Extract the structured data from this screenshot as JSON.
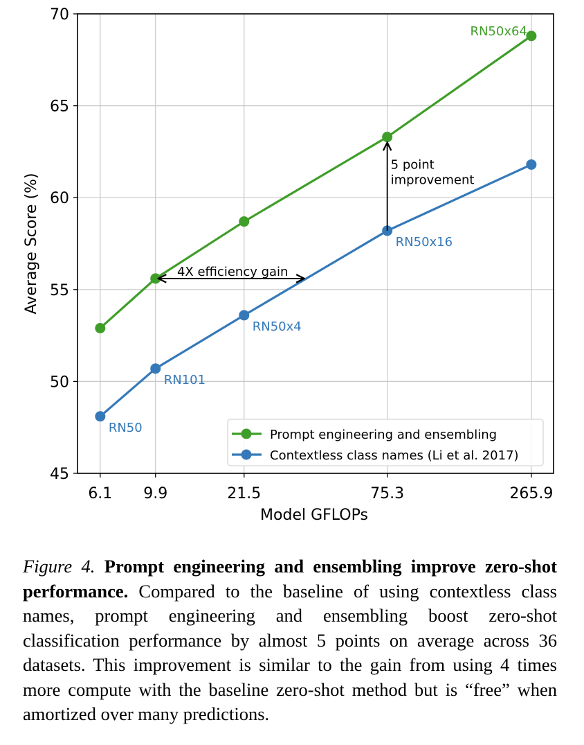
{
  "chart_data": {
    "type": "line",
    "xlabel": "Model GFLOPs",
    "ylabel": "Average Score (%)",
    "x_scale": "log",
    "x": [
      6.1,
      9.9,
      21.5,
      75.3,
      265.9
    ],
    "x_tick_labels": [
      "6.1",
      "9.9",
      "21.5",
      "75.3",
      "265.9"
    ],
    "xlim": [
      5.0,
      323
    ],
    "ylim": [
      45,
      70
    ],
    "y_ticks": [
      45,
      50,
      55,
      60,
      65,
      70
    ],
    "grid": true,
    "legend_placement": "lower-right",
    "series": [
      {
        "name": "Prompt engineering and ensembling",
        "color": "#3f9e29",
        "values": [
          52.9,
          55.6,
          58.7,
          63.3,
          68.8
        ]
      },
      {
        "name": "Contextless class names (Li et al. 2017)",
        "color": "#3579b9",
        "values": [
          48.1,
          50.7,
          53.6,
          58.2,
          61.8
        ]
      }
    ],
    "point_labels": [
      {
        "series": 1,
        "index": 0,
        "text": "RN50"
      },
      {
        "series": 1,
        "index": 1,
        "text": "RN101"
      },
      {
        "series": 1,
        "index": 2,
        "text": "RN50x4"
      },
      {
        "series": 1,
        "index": 3,
        "text": "RN50x16"
      },
      {
        "series": 0,
        "index": 4,
        "text": "RN50x64"
      }
    ],
    "annotations": [
      {
        "text": "4X efficiency gain",
        "type": "double-arrow-horizontal",
        "x_from": 9.9,
        "x_to": 36.4,
        "y": 55.6
      },
      {
        "text_lines": [
          "5 point",
          "improvement"
        ],
        "type": "arrow-vertical",
        "x": 75.3,
        "y_from": 58.2,
        "y_to": 63.3
      }
    ]
  },
  "caption": {
    "label": "Figure 4.",
    "title": "Prompt engineering and ensembling improve zero-shot performance.",
    "body": "Compared to the baseline of using contextless class names, prompt engineering and ensembling boost zero-shot classification performance by almost 5 points on average across 36 datasets. This improvement is similar to the gain from using 4 times more compute with the baseline zero-shot method but is “free” when amortized over many predictions."
  }
}
